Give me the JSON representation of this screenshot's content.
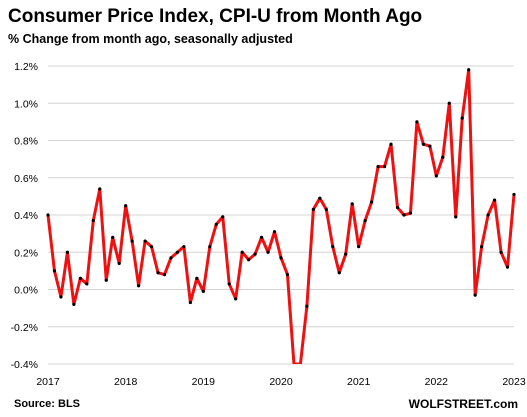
{
  "chart_data": {
    "type": "line",
    "title": "Consumer Price Index, CPI-U from Month Ago",
    "subtitle": "% Change from month ago, seasonally adjusted",
    "xlabel": "",
    "ylabel": "",
    "ylim": [
      -0.4,
      1.2
    ],
    "y_ticks": [
      -0.4,
      -0.2,
      0.0,
      0.2,
      0.4,
      0.6,
      0.8,
      1.0,
      1.2
    ],
    "y_tick_labels": [
      "-0.4%",
      "-0.2%",
      "0.0%",
      "0.2%",
      "0.4%",
      "0.6%",
      "0.8%",
      "1.0%",
      "1.2%"
    ],
    "x_tick_labels": [
      "2017",
      "2018",
      "2019",
      "2020",
      "2021",
      "2022",
      "2023"
    ],
    "x_tick_dates": [
      "2017-01",
      "2018-01",
      "2019-01",
      "2020-01",
      "2021-01",
      "2022-01",
      "2023-01"
    ],
    "grid": "horizontal",
    "series_color": "#ee1111",
    "marker_color": "#000000",
    "series": [
      {
        "x": [
          "2017-01",
          "2017-02",
          "2017-03",
          "2017-04",
          "2017-05",
          "2017-06",
          "2017-07",
          "2017-08",
          "2017-09",
          "2017-10",
          "2017-11",
          "2017-12",
          "2018-01",
          "2018-02",
          "2018-03",
          "2018-04",
          "2018-05",
          "2018-06",
          "2018-07",
          "2018-08",
          "2018-09",
          "2018-10",
          "2018-11",
          "2018-12",
          "2019-01",
          "2019-02",
          "2019-03",
          "2019-04",
          "2019-05",
          "2019-06",
          "2019-07",
          "2019-08",
          "2019-09",
          "2019-10",
          "2019-11",
          "2019-12",
          "2020-01",
          "2020-02",
          "2020-03",
          "2020-04",
          "2020-05",
          "2020-06",
          "2020-07",
          "2020-08",
          "2020-09",
          "2020-10",
          "2020-11",
          "2020-12",
          "2021-01",
          "2021-02",
          "2021-03",
          "2021-04",
          "2021-05",
          "2021-06",
          "2021-07",
          "2021-08",
          "2021-09",
          "2021-10",
          "2021-11",
          "2021-12",
          "2022-01",
          "2022-02",
          "2022-03",
          "2022-04",
          "2022-05",
          "2022-06",
          "2022-07",
          "2022-08",
          "2022-09",
          "2022-10",
          "2022-11",
          "2022-12",
          "2023-01"
        ],
        "values": [
          0.4,
          0.1,
          -0.04,
          0.2,
          -0.08,
          0.06,
          0.03,
          0.37,
          0.54,
          0.05,
          0.28,
          0.14,
          0.45,
          0.26,
          0.02,
          0.26,
          0.23,
          0.09,
          0.08,
          0.17,
          0.2,
          0.23,
          -0.07,
          0.06,
          -0.01,
          0.23,
          0.35,
          0.39,
          0.03,
          -0.05,
          0.2,
          0.16,
          0.19,
          0.28,
          0.2,
          0.31,
          0.17,
          0.08,
          -0.4,
          -0.4,
          -0.09,
          0.43,
          0.49,
          0.43,
          0.23,
          0.09,
          0.19,
          0.46,
          0.23,
          0.37,
          0.47,
          0.66,
          0.66,
          0.78,
          0.44,
          0.4,
          0.41,
          0.9,
          0.78,
          0.77,
          0.61,
          0.71,
          1.0,
          0.39,
          0.92,
          1.18,
          -0.03,
          0.23,
          0.4,
          0.48,
          0.2,
          0.12,
          0.51
        ]
      }
    ]
  },
  "footer": {
    "source": "Source: BLS",
    "brand": "WOLFSTREET.com"
  }
}
